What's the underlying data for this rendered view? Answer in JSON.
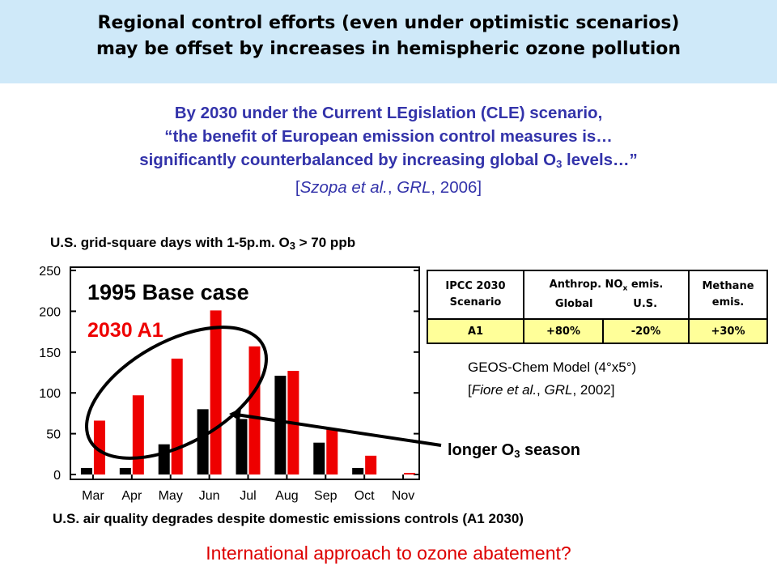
{
  "banner": {
    "line1": "Regional control efforts (even under optimistic scenarios)",
    "line2": "may be offset by increases in hemispheric ozone pollution"
  },
  "quote": {
    "line1": "By 2030 under the Current LEgislation (CLE) scenario,",
    "line2": "“the benefit of European emission control measures is…",
    "line3a": "significantly counterbalanced by increasing global O",
    "line3sub": "3",
    "line3b": " levels…”",
    "cite_pre": "[",
    "cite_authors": "Szopa et al.",
    "cite_sep": ", ",
    "cite_journal": "GRL",
    "cite_year": ", 2006]"
  },
  "chart_title": {
    "pre": "U.S. grid-square days with 1-5p.m. O",
    "sub": "3",
    "post": " > 70 ppb"
  },
  "chart_data": {
    "type": "bar",
    "categories": [
      "Mar",
      "Apr",
      "May",
      "Jun",
      "Jul",
      "Aug",
      "Sep",
      "Oct",
      "Nov"
    ],
    "series": [
      {
        "name": "1995 Base case",
        "color": "#000000",
        "values": [
          8,
          8,
          37,
          80,
          68,
          121,
          39,
          8,
          0
        ]
      },
      {
        "name": "2030 A1",
        "color": "#ee0000",
        "values": [
          66,
          97,
          142,
          201,
          157,
          127,
          56,
          23,
          2
        ]
      }
    ],
    "ylim": [
      0,
      250
    ],
    "yticks": [
      0,
      50,
      100,
      150,
      200,
      250
    ],
    "grid": false,
    "legend_position": "top-left",
    "annotation": "ellipse around May–Jul with arrow to 'longer O3 season'"
  },
  "legend": {
    "base": "1995 Base case",
    "a1": "2030 A1"
  },
  "table": {
    "h1a": "IPCC 2030",
    "h1b": "Scenario",
    "h2a": "Anthrop. NO",
    "h2sub": "x",
    "h2b": " emis.",
    "h2c": "Global",
    "h2d": "U.S.",
    "h3a": "Methane",
    "h3b": "emis.",
    "r_scen": "A1",
    "r_global": "+80%",
    "r_us": "-20%",
    "r_meth": "+30%"
  },
  "model": {
    "line1": "GEOS-Chem Model (4°x5°)",
    "cite_pre": "[",
    "cite_authors": "Fiore et al.",
    "cite_sep": ", ",
    "cite_journal": "GRL",
    "cite_year": ", 2002]"
  },
  "callout": {
    "pre": "longer O",
    "sub": "3",
    "post": " season"
  },
  "degrades": "U.S. air quality degrades despite domestic emissions controls (A1 2030)",
  "international": "International approach to ozone abatement?",
  "colors": {
    "banner_bg": "#cfe9f9",
    "quote": "#3333aa",
    "red": "#ee0000",
    "table_row": "#ffff99"
  }
}
